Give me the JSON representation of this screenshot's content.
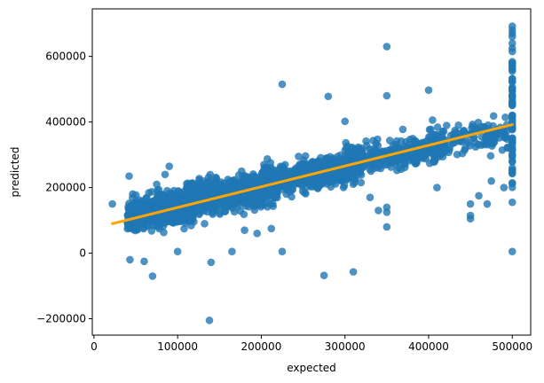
{
  "chart_data": {
    "type": "scatter",
    "title": "",
    "xlabel": "expected",
    "ylabel": "predicted",
    "xlim": [
      -2000,
      522000
    ],
    "ylim": [
      -250000,
      745000
    ],
    "x_ticks": [
      0,
      100000,
      200000,
      300000,
      400000,
      500000
    ],
    "x_tick_labels": [
      "0",
      "100000",
      "200000",
      "300000",
      "400000",
      "500000"
    ],
    "y_ticks": [
      -200000,
      0,
      200000,
      400000,
      600000
    ],
    "y_tick_labels": [
      "−200000",
      "0",
      "200000",
      "400000",
      "600000"
    ],
    "grid": false,
    "legend": "none",
    "colors": {
      "points": "#1f77b4",
      "regression_line": "#ffa500"
    },
    "regression_line": {
      "x": [
        22000,
        500000
      ],
      "y": [
        90000,
        392000
      ]
    },
    "point_clusters": [
      {
        "x_range": [
          40000,
          120000
        ],
        "y_center": 130000,
        "y_spread": 45000,
        "n": 650
      },
      {
        "x_range": [
          110000,
          220000
        ],
        "y_center": 185000,
        "y_spread": 42000,
        "n": 750
      },
      {
        "x_range": [
          200000,
          320000
        ],
        "y_center": 245000,
        "y_spread": 40000,
        "n": 520
      },
      {
        "x_range": [
          300000,
          420000
        ],
        "y_center": 300000,
        "y_spread": 40000,
        "n": 320
      },
      {
        "x_range": [
          400000,
          495000
        ],
        "y_center": 345000,
        "y_spread": 45000,
        "n": 140
      }
    ],
    "ceiling_column": {
      "x": 500000,
      "y_range": [
        200000,
        590000
      ],
      "n": 60
    },
    "points": [
      [
        22000,
        150000
      ],
      [
        42000,
        235000
      ],
      [
        43000,
        -20000
      ],
      [
        60000,
        -25000
      ],
      [
        70000,
        -70000
      ],
      [
        138000,
        -205000
      ],
      [
        140000,
        -28000
      ],
      [
        225000,
        5000
      ],
      [
        275000,
        -68000
      ],
      [
        310000,
        -57000
      ],
      [
        350000,
        80000
      ],
      [
        350000,
        630000
      ],
      [
        350000,
        480000
      ],
      [
        225000,
        515000
      ],
      [
        280000,
        478000
      ],
      [
        400000,
        497000
      ],
      [
        300000,
        402000
      ],
      [
        75000,
        210000
      ],
      [
        85000,
        240000
      ],
      [
        90000,
        265000
      ],
      [
        100000,
        5000
      ],
      [
        165000,
        5000
      ],
      [
        180000,
        70000
      ],
      [
        195000,
        60000
      ],
      [
        212000,
        75000
      ],
      [
        330000,
        170000
      ],
      [
        340000,
        130000
      ],
      [
        350000,
        140000
      ],
      [
        350000,
        125000
      ],
      [
        410000,
        200000
      ],
      [
        450000,
        150000
      ],
      [
        470000,
        150000
      ],
      [
        450000,
        105000
      ],
      [
        450000,
        115000
      ],
      [
        460000,
        175000
      ],
      [
        490000,
        200000
      ],
      [
        475000,
        220000
      ],
      [
        480000,
        365000
      ],
      [
        500000,
        5000
      ],
      [
        500000,
        155000
      ],
      [
        500000,
        615000
      ],
      [
        500000,
        625000
      ],
      [
        500000,
        640000
      ],
      [
        500000,
        660000
      ],
      [
        500000,
        670000
      ],
      [
        500000,
        680000
      ],
      [
        500000,
        692000
      ]
    ]
  }
}
